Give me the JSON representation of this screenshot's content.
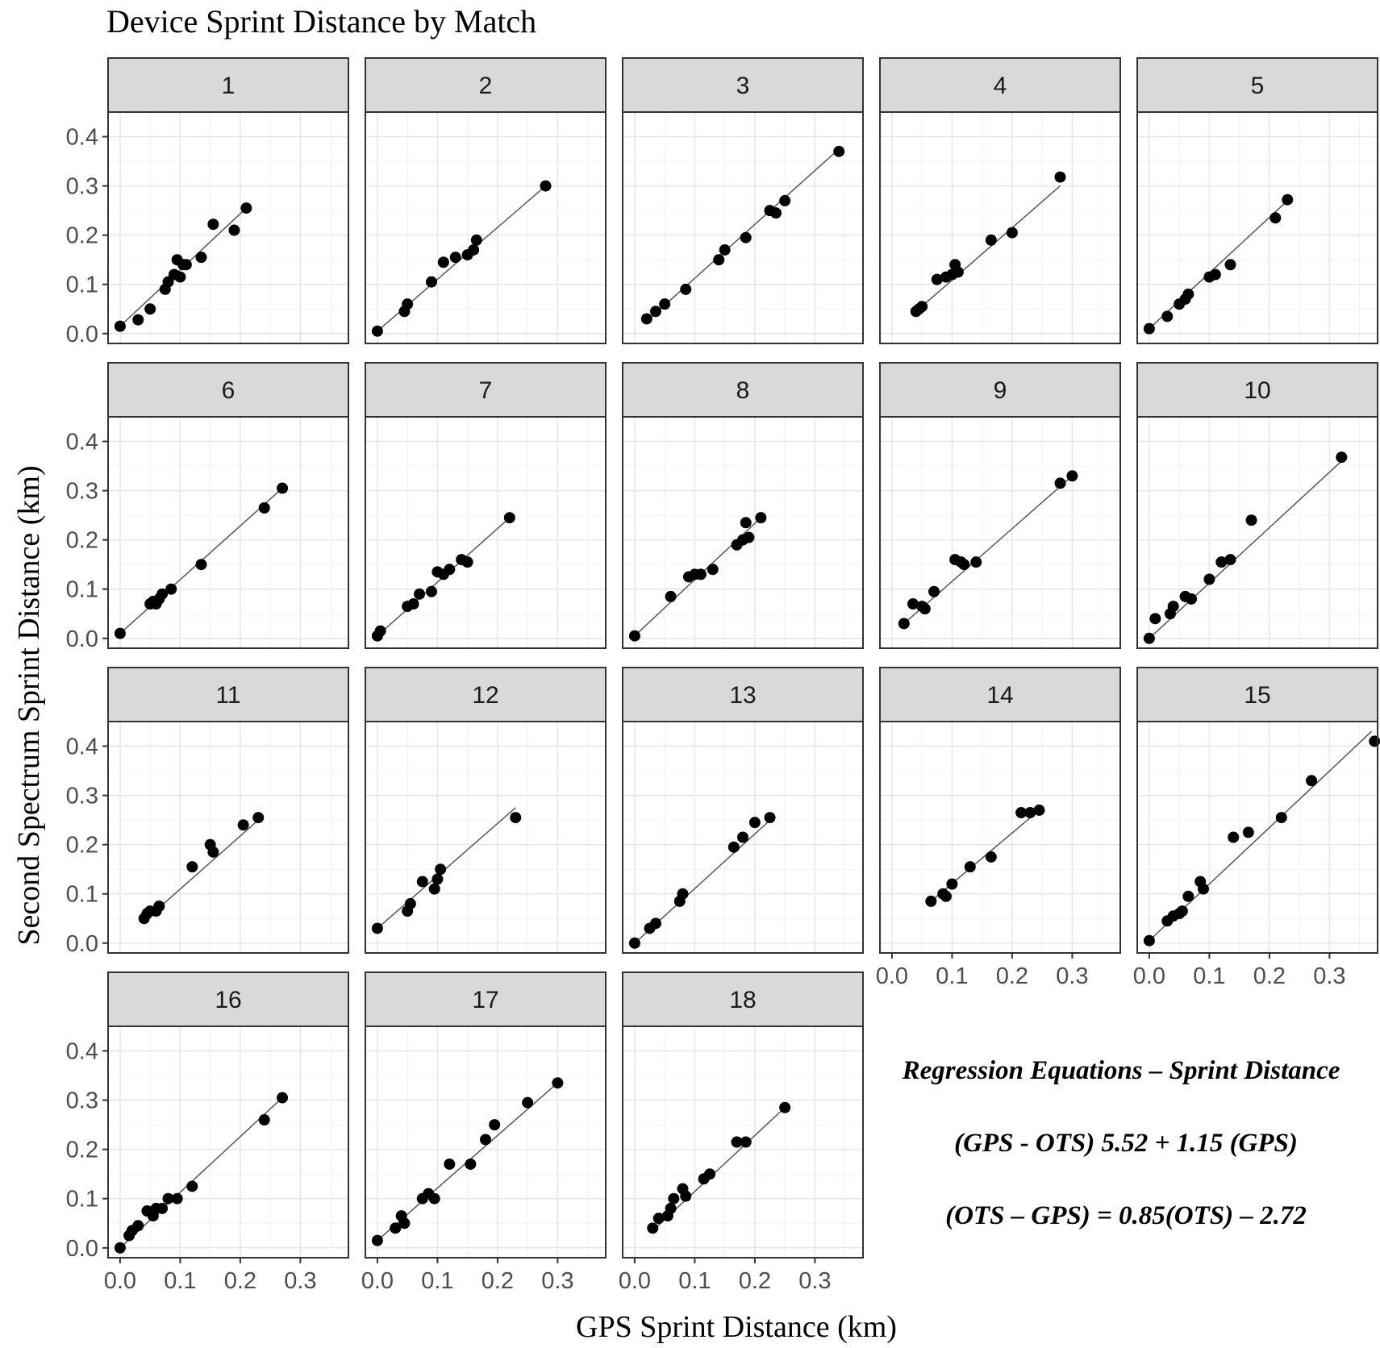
{
  "title": "Device Sprint Distance by Match",
  "chart_data": {
    "type": "scatter",
    "title": "Device Sprint Distance by Match",
    "xlabel": "GPS Sprint Distance (km)",
    "ylabel": "Second Spectrum Sprint Distance (km)",
    "xlim": [
      -0.02,
      0.38
    ],
    "ylim": [
      -0.02,
      0.45
    ],
    "x_ticks": [
      0.0,
      0.1,
      0.2,
      0.3
    ],
    "x_tick_labels": [
      "0.0",
      "0.1",
      "0.2",
      "0.3"
    ],
    "y_ticks": [
      0.0,
      0.1,
      0.2,
      0.3,
      0.4
    ],
    "y_tick_labels": [
      "0.0",
      "0.1",
      "0.2",
      "0.3",
      "0.4"
    ],
    "grid": true,
    "facets": [
      {
        "label": "1",
        "fit": [
          [
            0.0,
            0.015
          ],
          [
            0.21,
            0.255
          ]
        ],
        "points": [
          [
            0.0,
            0.015
          ],
          [
            0.03,
            0.028
          ],
          [
            0.05,
            0.05
          ],
          [
            0.075,
            0.09
          ],
          [
            0.08,
            0.105
          ],
          [
            0.09,
            0.12
          ],
          [
            0.095,
            0.15
          ],
          [
            0.1,
            0.115
          ],
          [
            0.105,
            0.14
          ],
          [
            0.11,
            0.14
          ],
          [
            0.135,
            0.155
          ],
          [
            0.155,
            0.222
          ],
          [
            0.19,
            0.21
          ],
          [
            0.21,
            0.255
          ]
        ]
      },
      {
        "label": "2",
        "fit": [
          [
            0.0,
            0.005
          ],
          [
            0.28,
            0.3
          ]
        ],
        "points": [
          [
            0.0,
            0.005
          ],
          [
            0.045,
            0.045
          ],
          [
            0.05,
            0.06
          ],
          [
            0.09,
            0.105
          ],
          [
            0.11,
            0.145
          ],
          [
            0.13,
            0.155
          ],
          [
            0.15,
            0.16
          ],
          [
            0.16,
            0.17
          ],
          [
            0.165,
            0.19
          ],
          [
            0.28,
            0.3
          ]
        ]
      },
      {
        "label": "3",
        "fit": [
          [
            0.02,
            0.025
          ],
          [
            0.34,
            0.375
          ]
        ],
        "points": [
          [
            0.02,
            0.03
          ],
          [
            0.035,
            0.045
          ],
          [
            0.05,
            0.06
          ],
          [
            0.085,
            0.09
          ],
          [
            0.14,
            0.15
          ],
          [
            0.15,
            0.17
          ],
          [
            0.185,
            0.195
          ],
          [
            0.225,
            0.25
          ],
          [
            0.235,
            0.245
          ],
          [
            0.25,
            0.27
          ],
          [
            0.34,
            0.37
          ]
        ]
      },
      {
        "label": "4",
        "fit": [
          [
            0.04,
            0.045
          ],
          [
            0.28,
            0.3
          ]
        ],
        "points": [
          [
            0.04,
            0.045
          ],
          [
            0.045,
            0.05
          ],
          [
            0.05,
            0.055
          ],
          [
            0.075,
            0.11
          ],
          [
            0.09,
            0.115
          ],
          [
            0.1,
            0.12
          ],
          [
            0.105,
            0.14
          ],
          [
            0.11,
            0.125
          ],
          [
            0.165,
            0.19
          ],
          [
            0.2,
            0.205
          ],
          [
            0.28,
            0.318
          ]
        ]
      },
      {
        "label": "5",
        "fit": [
          [
            0.0,
            0.01
          ],
          [
            0.23,
            0.27
          ]
        ],
        "points": [
          [
            0.0,
            0.01
          ],
          [
            0.03,
            0.035
          ],
          [
            0.05,
            0.06
          ],
          [
            0.06,
            0.07
          ],
          [
            0.065,
            0.08
          ],
          [
            0.1,
            0.115
          ],
          [
            0.11,
            0.12
          ],
          [
            0.135,
            0.14
          ],
          [
            0.21,
            0.235
          ],
          [
            0.23,
            0.272
          ]
        ]
      },
      {
        "label": "6",
        "fit": [
          [
            0.0,
            0.01
          ],
          [
            0.27,
            0.305
          ]
        ],
        "points": [
          [
            0.0,
            0.01
          ],
          [
            0.05,
            0.07
          ],
          [
            0.055,
            0.075
          ],
          [
            0.06,
            0.07
          ],
          [
            0.065,
            0.08
          ],
          [
            0.07,
            0.09
          ],
          [
            0.085,
            0.1
          ],
          [
            0.135,
            0.15
          ],
          [
            0.24,
            0.265
          ],
          [
            0.27,
            0.305
          ]
        ]
      },
      {
        "label": "7",
        "fit": [
          [
            0.0,
            0.005
          ],
          [
            0.22,
            0.245
          ]
        ],
        "points": [
          [
            0.0,
            0.005
          ],
          [
            0.005,
            0.015
          ],
          [
            0.05,
            0.065
          ],
          [
            0.06,
            0.07
          ],
          [
            0.07,
            0.09
          ],
          [
            0.09,
            0.095
          ],
          [
            0.1,
            0.135
          ],
          [
            0.11,
            0.13
          ],
          [
            0.12,
            0.14
          ],
          [
            0.14,
            0.16
          ],
          [
            0.15,
            0.155
          ],
          [
            0.22,
            0.245
          ]
        ]
      },
      {
        "label": "8",
        "fit": [
          [
            0.0,
            0.005
          ],
          [
            0.21,
            0.245
          ]
        ],
        "points": [
          [
            0.0,
            0.005
          ],
          [
            0.06,
            0.085
          ],
          [
            0.09,
            0.125
          ],
          [
            0.1,
            0.13
          ],
          [
            0.11,
            0.13
          ],
          [
            0.13,
            0.14
          ],
          [
            0.17,
            0.19
          ],
          [
            0.18,
            0.2
          ],
          [
            0.185,
            0.235
          ],
          [
            0.19,
            0.205
          ],
          [
            0.21,
            0.245
          ]
        ]
      },
      {
        "label": "9",
        "fit": [
          [
            0.02,
            0.03
          ],
          [
            0.3,
            0.33
          ]
        ],
        "points": [
          [
            0.02,
            0.03
          ],
          [
            0.035,
            0.07
          ],
          [
            0.05,
            0.065
          ],
          [
            0.055,
            0.06
          ],
          [
            0.07,
            0.095
          ],
          [
            0.105,
            0.16
          ],
          [
            0.115,
            0.155
          ],
          [
            0.12,
            0.15
          ],
          [
            0.14,
            0.155
          ],
          [
            0.28,
            0.315
          ],
          [
            0.3,
            0.33
          ]
        ]
      },
      {
        "label": "10",
        "fit": [
          [
            0.0,
            0.0
          ],
          [
            0.32,
            0.36
          ]
        ],
        "points": [
          [
            0.0,
            0.0
          ],
          [
            0.01,
            0.04
          ],
          [
            0.035,
            0.05
          ],
          [
            0.04,
            0.065
          ],
          [
            0.06,
            0.085
          ],
          [
            0.07,
            0.08
          ],
          [
            0.1,
            0.12
          ],
          [
            0.12,
            0.155
          ],
          [
            0.135,
            0.16
          ],
          [
            0.17,
            0.24
          ],
          [
            0.32,
            0.368
          ]
        ]
      },
      {
        "label": "11",
        "fit": [
          [
            0.04,
            0.045
          ],
          [
            0.23,
            0.25
          ]
        ],
        "points": [
          [
            0.04,
            0.05
          ],
          [
            0.045,
            0.06
          ],
          [
            0.05,
            0.065
          ],
          [
            0.06,
            0.065
          ],
          [
            0.065,
            0.075
          ],
          [
            0.12,
            0.155
          ],
          [
            0.15,
            0.2
          ],
          [
            0.155,
            0.185
          ],
          [
            0.205,
            0.24
          ],
          [
            0.23,
            0.255
          ]
        ]
      },
      {
        "label": "12",
        "fit": [
          [
            0.0,
            0.03
          ],
          [
            0.23,
            0.275
          ]
        ],
        "points": [
          [
            0.0,
            0.03
          ],
          [
            0.05,
            0.065
          ],
          [
            0.055,
            0.08
          ],
          [
            0.075,
            0.125
          ],
          [
            0.095,
            0.11
          ],
          [
            0.1,
            0.13
          ],
          [
            0.105,
            0.15
          ],
          [
            0.23,
            0.255
          ]
        ]
      },
      {
        "label": "13",
        "fit": [
          [
            0.0,
            0.0
          ],
          [
            0.23,
            0.255
          ]
        ],
        "points": [
          [
            0.0,
            0.0
          ],
          [
            0.025,
            0.03
          ],
          [
            0.035,
            0.04
          ],
          [
            0.075,
            0.085
          ],
          [
            0.08,
            0.1
          ],
          [
            0.165,
            0.195
          ],
          [
            0.18,
            0.215
          ],
          [
            0.2,
            0.245
          ],
          [
            0.225,
            0.255
          ]
        ]
      },
      {
        "label": "14",
        "fit": [
          [
            0.065,
            0.085
          ],
          [
            0.245,
            0.27
          ]
        ],
        "points": [
          [
            0.065,
            0.085
          ],
          [
            0.085,
            0.1
          ],
          [
            0.09,
            0.095
          ],
          [
            0.1,
            0.12
          ],
          [
            0.13,
            0.155
          ],
          [
            0.165,
            0.175
          ],
          [
            0.215,
            0.265
          ],
          [
            0.23,
            0.265
          ],
          [
            0.245,
            0.27
          ]
        ]
      },
      {
        "label": "15",
        "fit": [
          [
            0.0,
            0.005
          ],
          [
            0.37,
            0.43
          ]
        ],
        "points": [
          [
            0.0,
            0.005
          ],
          [
            0.03,
            0.045
          ],
          [
            0.04,
            0.055
          ],
          [
            0.05,
            0.06
          ],
          [
            0.055,
            0.065
          ],
          [
            0.065,
            0.095
          ],
          [
            0.085,
            0.125
          ],
          [
            0.09,
            0.11
          ],
          [
            0.14,
            0.215
          ],
          [
            0.165,
            0.225
          ],
          [
            0.22,
            0.255
          ],
          [
            0.27,
            0.33
          ],
          [
            0.375,
            0.41
          ]
        ]
      },
      {
        "label": "16",
        "fit": [
          [
            0.0,
            0.0
          ],
          [
            0.27,
            0.305
          ]
        ],
        "points": [
          [
            0.0,
            0.0
          ],
          [
            0.015,
            0.025
          ],
          [
            0.02,
            0.035
          ],
          [
            0.03,
            0.045
          ],
          [
            0.045,
            0.075
          ],
          [
            0.055,
            0.065
          ],
          [
            0.06,
            0.08
          ],
          [
            0.07,
            0.08
          ],
          [
            0.08,
            0.1
          ],
          [
            0.095,
            0.1
          ],
          [
            0.12,
            0.125
          ],
          [
            0.24,
            0.26
          ],
          [
            0.27,
            0.305
          ]
        ]
      },
      {
        "label": "17",
        "fit": [
          [
            0.0,
            0.015
          ],
          [
            0.3,
            0.335
          ]
        ],
        "points": [
          [
            0.0,
            0.015
          ],
          [
            0.03,
            0.04
          ],
          [
            0.04,
            0.065
          ],
          [
            0.045,
            0.05
          ],
          [
            0.075,
            0.1
          ],
          [
            0.085,
            0.11
          ],
          [
            0.095,
            0.1
          ],
          [
            0.12,
            0.17
          ],
          [
            0.155,
            0.17
          ],
          [
            0.18,
            0.22
          ],
          [
            0.195,
            0.25
          ],
          [
            0.25,
            0.295
          ],
          [
            0.3,
            0.335
          ]
        ]
      },
      {
        "label": "18",
        "fit": [
          [
            0.03,
            0.035
          ],
          [
            0.25,
            0.285
          ]
        ],
        "points": [
          [
            0.03,
            0.04
          ],
          [
            0.04,
            0.06
          ],
          [
            0.055,
            0.065
          ],
          [
            0.06,
            0.08
          ],
          [
            0.065,
            0.1
          ],
          [
            0.08,
            0.12
          ],
          [
            0.085,
            0.105
          ],
          [
            0.115,
            0.14
          ],
          [
            0.125,
            0.15
          ],
          [
            0.17,
            0.215
          ],
          [
            0.185,
            0.215
          ],
          [
            0.25,
            0.285
          ]
        ]
      }
    ]
  },
  "annotation": {
    "heading": "Regression Equations – Sprint Distance",
    "line1": "(GPS - OTS) 5.52 + 1.15 (GPS)",
    "line2": "(OTS – GPS) = 0.85(OTS) – 2.72"
  }
}
